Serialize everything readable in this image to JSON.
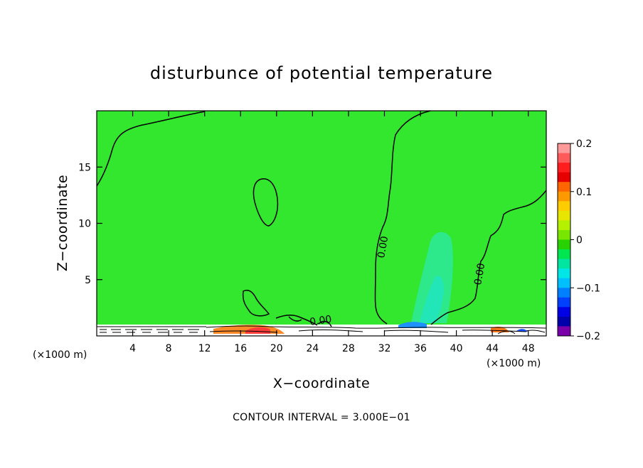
{
  "chart_data": {
    "type": "heatmap",
    "title": "disturbunce of potential temperature",
    "xlabel": "X−coordinate",
    "ylabel": "Z−coordinate",
    "x_unit_left": "(×1000 m)",
    "x_unit_right": "(×1000 m)",
    "xlim": [
      0,
      50
    ],
    "ylim": [
      0,
      20
    ],
    "x_ticks": [
      4,
      8,
      12,
      16,
      20,
      24,
      28,
      32,
      36,
      40,
      44,
      48
    ],
    "y_ticks": [
      5,
      10,
      15
    ],
    "colorbar": {
      "range": [
        -0.2,
        0.2
      ],
      "ticks": [
        0.2,
        0.1,
        0,
        -0.1,
        -0.2
      ],
      "tick_labels": [
        "0.2",
        "0.1",
        "0",
        "−0.1",
        "−0.2"
      ],
      "colors": [
        "#ff9a9a",
        "#ff5a5a",
        "#ff1e1e",
        "#e60000",
        "#ff6600",
        "#ff9900",
        "#ffcc00",
        "#e6e600",
        "#b4f000",
        "#78e600",
        "#28d200",
        "#00e650",
        "#00e6a0",
        "#00e6e6",
        "#00bfff",
        "#0080ff",
        "#0040ff",
        "#0000e6",
        "#0000aa",
        "#7a00aa"
      ]
    },
    "contour_labels": [
      "0.00",
      "0.00",
      "0.00"
    ],
    "contour_interval_text": "CONTOUR INTERVAL = 3.000E−01",
    "background_value": 0.0
  }
}
